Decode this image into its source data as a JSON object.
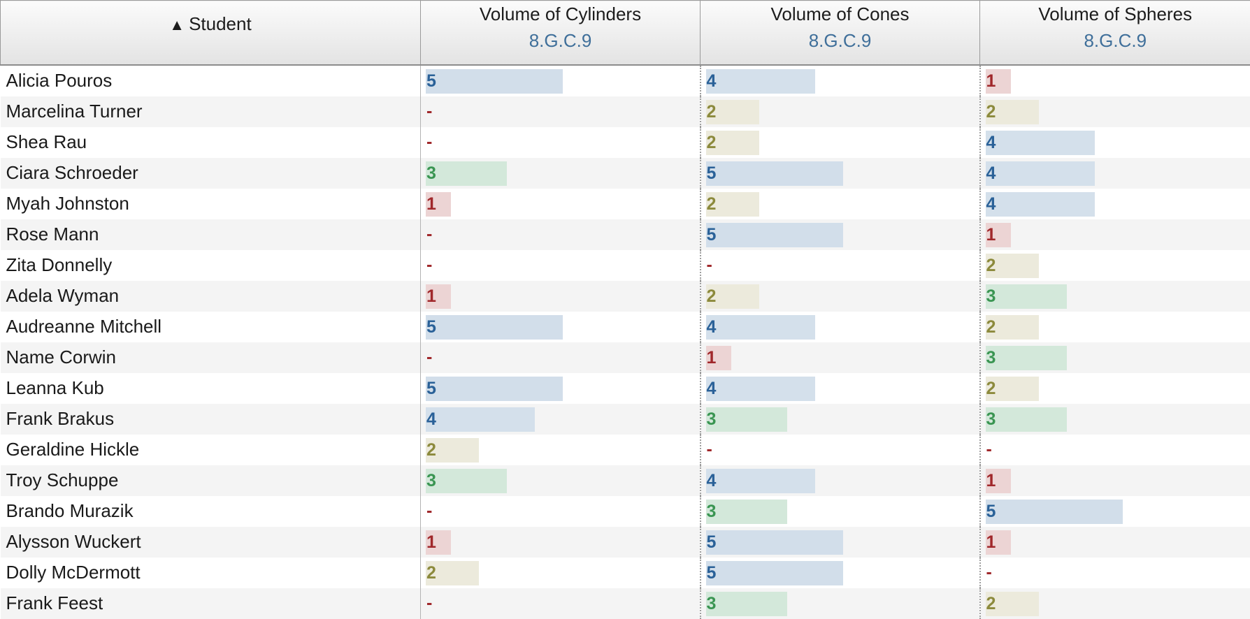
{
  "header": {
    "student_label": "Student",
    "sort_icon": "triangle-up-icon"
  },
  "standards": [
    {
      "title": "Volume of Cylinders",
      "code": "8.G.C.9"
    },
    {
      "title": "Volume of Cones",
      "code": "8.G.C.9"
    },
    {
      "title": "Volume of Spheres",
      "code": "8.G.C.9"
    }
  ],
  "empty_marker": "-",
  "score_colors": {
    "1": {
      "text": "#a0282b",
      "bar": "#ecd4d4"
    },
    "2": {
      "text": "#8c8a3c",
      "bar": "#eceadc"
    },
    "3": {
      "text": "#3a9552",
      "bar": "#d3e8da"
    },
    "4": {
      "text": "#2a6198",
      "bar": "#d4e0eb"
    },
    "5": {
      "text": "#2a6198",
      "bar": "#d2deea"
    }
  },
  "score_max": 5,
  "rows": [
    {
      "name": "Alicia Pouros",
      "scores": [
        5,
        4,
        1
      ]
    },
    {
      "name": "Marcelina Turner",
      "scores": [
        null,
        2,
        2
      ]
    },
    {
      "name": "Shea Rau",
      "scores": [
        null,
        2,
        4
      ]
    },
    {
      "name": "Ciara Schroeder",
      "scores": [
        3,
        5,
        4
      ]
    },
    {
      "name": "Myah Johnston",
      "scores": [
        1,
        2,
        4
      ]
    },
    {
      "name": "Rose Mann",
      "scores": [
        null,
        5,
        1
      ]
    },
    {
      "name": "Zita Donnelly",
      "scores": [
        null,
        null,
        2
      ]
    },
    {
      "name": "Adela Wyman",
      "scores": [
        1,
        2,
        3
      ]
    },
    {
      "name": "Audreanne Mitchell",
      "scores": [
        5,
        4,
        2
      ]
    },
    {
      "name": "Name Corwin",
      "scores": [
        null,
        1,
        3
      ]
    },
    {
      "name": "Leanna Kub",
      "scores": [
        5,
        4,
        2
      ]
    },
    {
      "name": "Frank Brakus",
      "scores": [
        4,
        3,
        3
      ]
    },
    {
      "name": "Geraldine Hickle",
      "scores": [
        2,
        null,
        null
      ]
    },
    {
      "name": "Troy Schuppe",
      "scores": [
        3,
        4,
        1
      ]
    },
    {
      "name": "Brando Murazik",
      "scores": [
        null,
        3,
        5
      ]
    },
    {
      "name": "Alysson Wuckert",
      "scores": [
        1,
        5,
        1
      ]
    },
    {
      "name": "Dolly McDermott",
      "scores": [
        2,
        5,
        null
      ]
    },
    {
      "name": "Frank Feest",
      "scores": [
        null,
        3,
        2
      ]
    }
  ]
}
